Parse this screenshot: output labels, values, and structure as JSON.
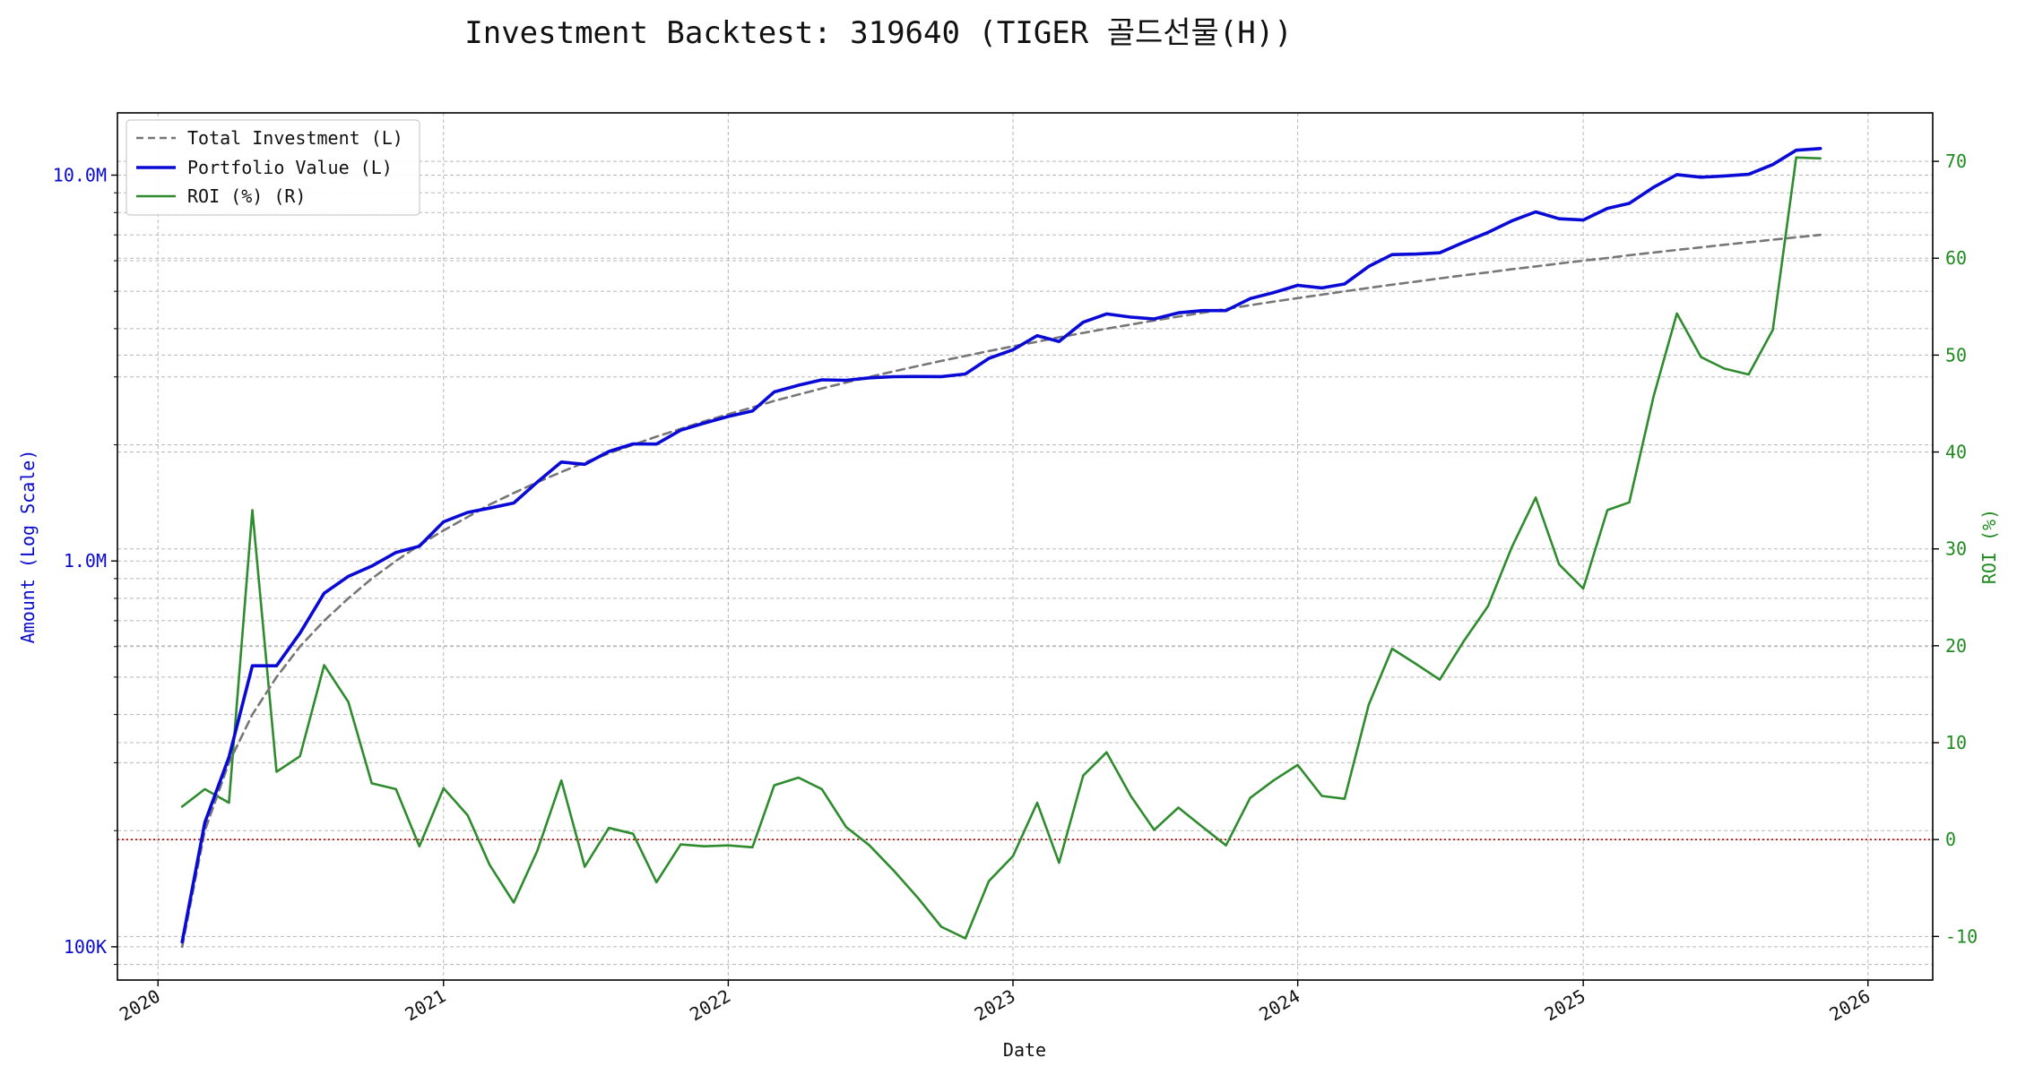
{
  "chart_data": {
    "type": "line",
    "title": "Investment Backtest: 319640 (TIGER 골드선물(H))",
    "xlabel": "Date",
    "ylabel_left": "Amount (Log Scale)",
    "ylabel_right": "ROI (%)",
    "x_ticks": [
      "2020",
      "2021",
      "2022",
      "2023",
      "2024",
      "2025",
      "2026"
    ],
    "y_left_ticks": [
      {
        "value": 100000,
        "label": "100K"
      },
      {
        "value": 1000000,
        "label": "1.0M"
      },
      {
        "value": 10000000,
        "label": "10.0M"
      }
    ],
    "y_right_ticks": [
      -10,
      0,
      10,
      20,
      30,
      40,
      50,
      60,
      70
    ],
    "y_left_scale": "log",
    "y_left_range": [
      82000,
      14500000
    ],
    "y_right_range": [
      -14.5,
      75
    ],
    "x_range": [
      "2019-11-10",
      "2026-03-25"
    ],
    "grid": true,
    "legend_position": "top-left",
    "zero_line": {
      "axis": "right",
      "value": 0,
      "color": "#b00000",
      "style": "dotted"
    },
    "dates": [
      "2020-02-01",
      "2020-03-01",
      "2020-04-01",
      "2020-05-01",
      "2020-06-01",
      "2020-07-01",
      "2020-08-01",
      "2020-09-01",
      "2020-10-01",
      "2020-11-01",
      "2020-12-01",
      "2021-01-01",
      "2021-02-01",
      "2021-03-01",
      "2021-04-01",
      "2021-05-01",
      "2021-06-01",
      "2021-07-01",
      "2021-08-01",
      "2021-09-01",
      "2021-10-01",
      "2021-11-01",
      "2021-12-01",
      "2022-01-01",
      "2022-02-01",
      "2022-03-01",
      "2022-04-01",
      "2022-05-01",
      "2022-06-01",
      "2022-07-01",
      "2022-08-01",
      "2022-09-01",
      "2022-10-01",
      "2022-11-01",
      "2022-12-01",
      "2023-01-01",
      "2023-02-01",
      "2023-03-01",
      "2023-04-01",
      "2023-05-01",
      "2023-06-01",
      "2023-07-01",
      "2023-08-01",
      "2023-09-01",
      "2023-10-01",
      "2023-11-01",
      "2023-12-01",
      "2024-01-01",
      "2024-02-01",
      "2024-03-01",
      "2024-04-01",
      "2024-05-01",
      "2024-06-01",
      "2024-07-01",
      "2024-08-01",
      "2024-09-01",
      "2024-10-01",
      "2024-11-01",
      "2024-12-01",
      "2025-01-01",
      "2025-02-01",
      "2025-03-01",
      "2025-04-01",
      "2025-05-01",
      "2025-06-01",
      "2025-07-01",
      "2025-08-01",
      "2025-09-01",
      "2025-10-01",
      "2025-11-01"
    ],
    "series": [
      {
        "name": "Total Investment (L)",
        "axis": "left",
        "color": "#777777",
        "style": "dashed",
        "values": [
          100000,
          200000,
          300000,
          400000,
          500000,
          600000,
          700000,
          800000,
          900000,
          1000000,
          1100000,
          1200000,
          1300000,
          1400000,
          1500000,
          1600000,
          1700000,
          1800000,
          1900000,
          2000000,
          2100000,
          2200000,
          2300000,
          2400000,
          2500000,
          2600000,
          2700000,
          2800000,
          2900000,
          3000000,
          3100000,
          3200000,
          3300000,
          3400000,
          3500000,
          3600000,
          3700000,
          3800000,
          3900000,
          4000000,
          4100000,
          4200000,
          4300000,
          4400000,
          4500000,
          4600000,
          4700000,
          4800000,
          4900000,
          5000000,
          5100000,
          5200000,
          5300000,
          5400000,
          5500000,
          5600000,
          5700000,
          5800000,
          5900000,
          6000000,
          6100000,
          6200000,
          6300000,
          6400000,
          6500000,
          6600000,
          6700000,
          6800000,
          6900000,
          7000000
        ]
      },
      {
        "name": "Portfolio Value (L)",
        "axis": "left",
        "color": "#0a0ad6",
        "style": "solid",
        "values": [
          103000,
          210000,
          310000,
          535000,
          535000,
          650000,
          825000,
          912000,
          970000,
          1052000,
          1092000,
          1263000,
          1336000,
          1371000,
          1413000,
          1600000,
          1804000,
          1780000,
          1922000,
          2011000,
          2009000,
          2183000,
          2276000,
          2368000,
          2447000,
          2743000,
          2854000,
          2948000,
          2939000,
          2982000,
          3003000,
          3007000,
          3004000,
          3052000,
          3349000,
          3528000,
          3837000,
          3706000,
          4156000,
          4368000,
          4285000,
          4240000,
          4397000,
          4455000,
          4455000,
          4788000,
          4961000,
          5181000,
          5101000,
          5223000,
          5800000,
          6224000,
          6244000,
          6290000,
          6701000,
          7106000,
          7604000,
          8030000,
          7706000,
          7650000,
          8200000,
          8450000,
          9300000,
          10030000,
          9880000,
          9950000,
          10050000,
          10650000,
          11600000,
          11720000
        ]
      },
      {
        "name": "ROI (%) (R)",
        "axis": "right",
        "color": "#2e8b2e",
        "style": "solid",
        "values": [
          3.4,
          5.2,
          3.8,
          34.0,
          7.0,
          8.6,
          18.0,
          14.2,
          5.8,
          5.2,
          -0.7,
          5.3,
          2.5,
          -2.6,
          -6.5,
          -1.2,
          6.1,
          -2.8,
          1.2,
          0.6,
          -4.4,
          -0.5,
          -0.7,
          -0.6,
          -0.8,
          5.6,
          6.4,
          5.2,
          1.3,
          -0.6,
          -3.2,
          -6.0,
          -9.0,
          -10.2,
          -4.3,
          -1.7,
          3.8,
          -2.4,
          6.6,
          9.0,
          4.5,
          1.0,
          3.3,
          1.3,
          -0.6,
          4.3,
          6.1,
          7.7,
          4.5,
          4.2,
          13.9,
          19.7,
          18.1,
          16.5,
          20.5,
          24.1,
          30.1,
          35.3,
          28.4,
          25.9,
          34.0,
          34.8,
          45.7,
          54.3,
          49.8,
          48.6,
          48.0,
          52.6,
          70.4,
          70.3
        ]
      }
    ]
  }
}
